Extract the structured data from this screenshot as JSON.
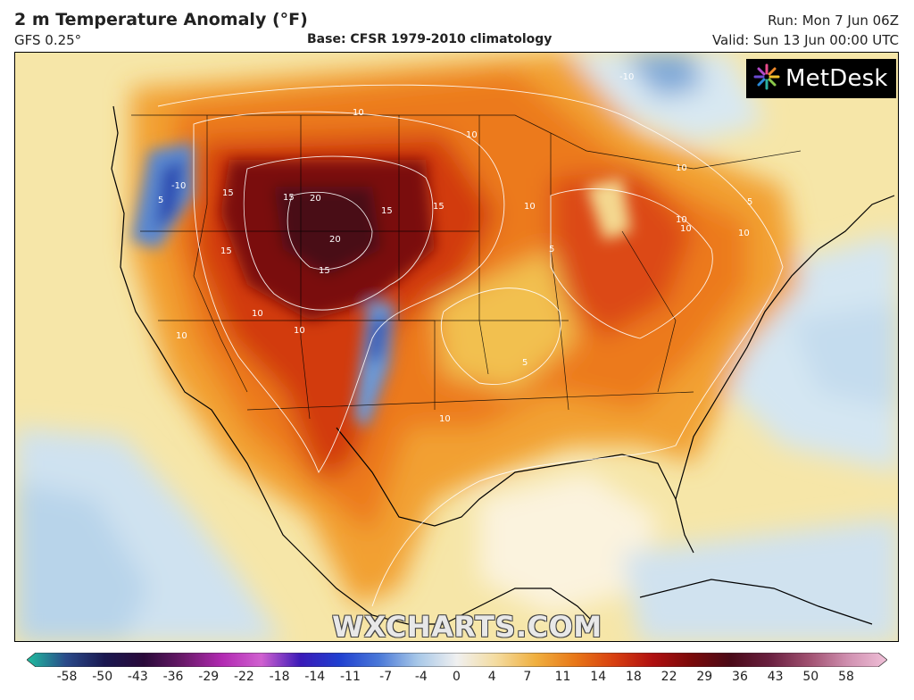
{
  "header": {
    "title": "2 m Temperature Anomaly (°F)",
    "model": "GFS 0.25°",
    "base": "Base: CFSR 1979-2010 climatology",
    "run": "Run: Mon 7 Jun 06Z",
    "valid": "Valid: Sun 13 Jun 00:00 UTC"
  },
  "logo": {
    "text": "MetDesk",
    "icon": "metdesk-burst-icon"
  },
  "watermark": "WXCHARTS.COM",
  "colorbar": {
    "ticks": [
      "-58",
      "-50",
      "-43",
      "-36",
      "-29",
      "-22",
      "-18",
      "-14",
      "-11",
      "-7",
      "-4",
      "0",
      "4",
      "7",
      "11",
      "14",
      "18",
      "22",
      "29",
      "36",
      "43",
      "50",
      "58"
    ],
    "colors": [
      "#1fbf9f",
      "#2a4a8a",
      "#1a1850",
      "#2a0a3a",
      "#6a1a6a",
      "#b22ab2",
      "#d060d0",
      "#3a1ab8",
      "#2040d0",
      "#4a78d8",
      "#a8c8e8",
      "#f0f0f0",
      "#f4dca0",
      "#f0b040",
      "#e87818",
      "#d84010",
      "#b01010",
      "#7a0a0a",
      "#4a0a18",
      "#6a2040",
      "#a05070",
      "#d090b0",
      "#f0c0d8"
    ]
  },
  "contour_labels": [
    {
      "text": "10"
    },
    {
      "text": "10"
    },
    {
      "text": "15"
    },
    {
      "text": "15"
    },
    {
      "text": "20"
    },
    {
      "text": "20"
    },
    {
      "text": "15"
    },
    {
      "text": "15"
    },
    {
      "text": "15"
    },
    {
      "text": "15"
    },
    {
      "text": "-10"
    },
    {
      "text": "5"
    },
    {
      "text": "10"
    },
    {
      "text": "10"
    },
    {
      "text": "10"
    },
    {
      "text": "10"
    },
    {
      "text": "10"
    },
    {
      "text": "-10"
    },
    {
      "text": "10"
    },
    {
      "text": "5"
    },
    {
      "text": "10"
    },
    {
      "text": "10"
    },
    {
      "text": "5"
    },
    {
      "text": "5"
    },
    {
      "text": "10"
    }
  ]
}
